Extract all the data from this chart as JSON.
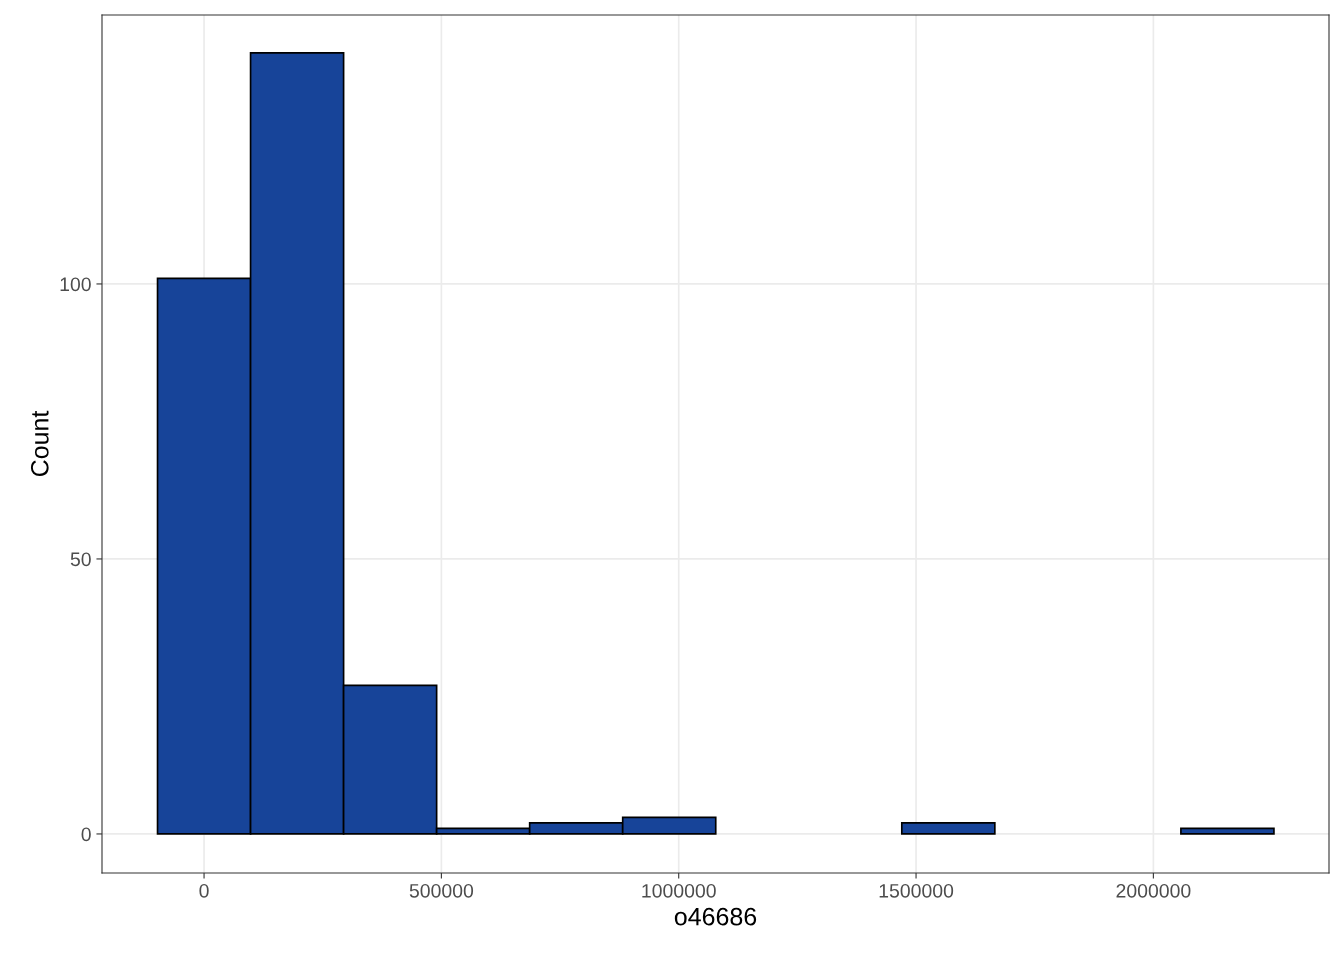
{
  "chart_data": {
    "type": "histogram",
    "xlabel": "o46686",
    "ylabel": "Count",
    "bins": [
      -98000,
      98000,
      294000,
      490000,
      686000,
      882000,
      1078000,
      1274000,
      1470000,
      1666000,
      1862000,
      2058000,
      2254000
    ],
    "values": [
      101,
      142,
      27,
      1,
      2,
      3,
      0,
      0,
      2,
      0,
      0,
      1
    ],
    "color": "#174499",
    "xlim": [
      -215000,
      2370000
    ],
    "xticks": [
      0,
      500000,
      1000000,
      1500000,
      2000000
    ],
    "ylim": [
      -7.1,
      148.9
    ],
    "yticks": [
      0,
      50,
      100
    ],
    "grid": true
  }
}
